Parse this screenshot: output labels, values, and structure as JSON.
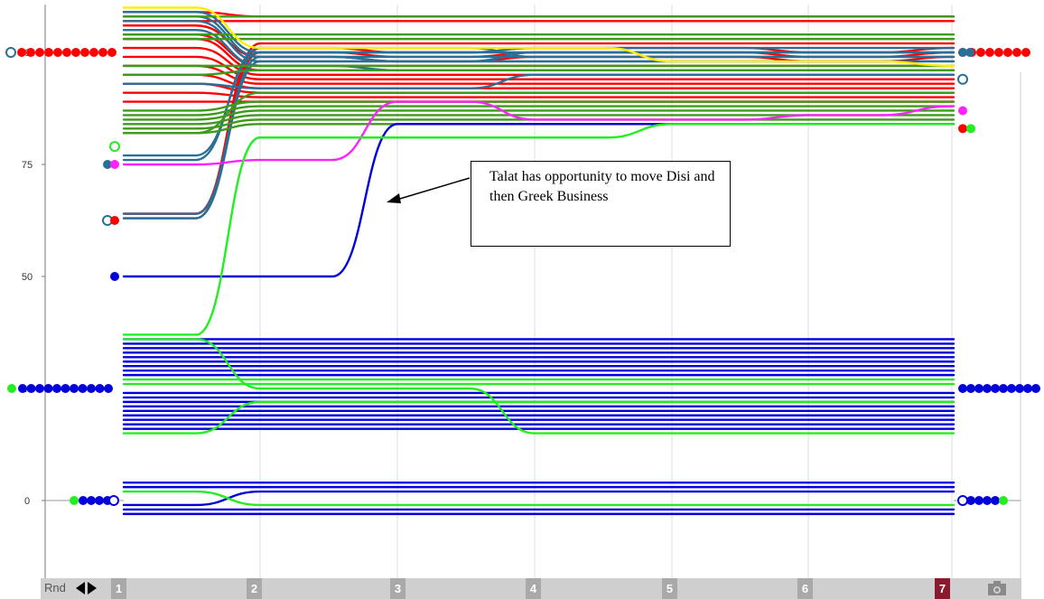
{
  "chart_data": {
    "type": "line",
    "title": "",
    "xlabel": "",
    "ylabel": "",
    "ylim": [
      -10,
      110
    ],
    "x_rounds": [
      "1",
      "2",
      "3",
      "4",
      "5",
      "6",
      "7"
    ],
    "y_ticks": [
      "0",
      "25",
      "50",
      "75",
      "100"
    ],
    "series_colors": {
      "red": "#ff0000",
      "teal": "#2a6f97",
      "olive": "#3d9a1a",
      "yellow": "#ffee00",
      "magenta": "#ff22ff",
      "blue": "#0000dd",
      "green": "#22ee22"
    },
    "groups": [
      {
        "color": "red",
        "values": [
          [
            64,
            102,
            102,
            102,
            102,
            102,
            102
          ],
          [
            63,
            101,
            100,
            101,
            101,
            100,
            101
          ],
          [
            64,
            100,
            99,
            100,
            100,
            99,
            100
          ],
          [
            106,
            99,
            98,
            99,
            99,
            98,
            99
          ],
          [
            104,
            97,
            97,
            97,
            97,
            97,
            97
          ],
          [
            103,
            96,
            96,
            96,
            96,
            96,
            96
          ],
          [
            101,
            95,
            95,
            95,
            95,
            95,
            95
          ],
          [
            99,
            94,
            94,
            94,
            94,
            94,
            94
          ],
          [
            97,
            93,
            93,
            93,
            93,
            93,
            93
          ],
          [
            95,
            92,
            92,
            92,
            92,
            92,
            92
          ],
          [
            93,
            91,
            91,
            91,
            91,
            91,
            91
          ],
          [
            91,
            90,
            90,
            90,
            90,
            90,
            90
          ],
          [
            89,
            89,
            89,
            89,
            89,
            89,
            89
          ],
          [
            109,
            108,
            108,
            108,
            108,
            108,
            108
          ],
          [
            107,
            107,
            107,
            107,
            107,
            107,
            107
          ]
        ]
      },
      {
        "color": "teal",
        "values": [
          [
            109,
            100,
            100,
            100,
            100,
            100,
            100
          ],
          [
            108,
            99,
            99,
            99,
            99,
            99,
            99
          ],
          [
            107,
            98,
            98,
            98,
            98,
            98,
            98
          ],
          [
            105,
            97,
            96,
            96,
            96,
            96,
            96
          ],
          [
            93,
            92,
            92,
            95,
            95,
            95,
            95
          ],
          [
            77,
            100,
            100,
            101,
            101,
            101,
            101
          ],
          [
            76,
            101,
            101,
            99,
            99,
            99,
            99
          ],
          [
            64,
            99,
            98,
            98,
            98,
            98,
            98
          ],
          [
            63,
            98,
            98,
            100,
            100,
            100,
            100
          ]
        ]
      },
      {
        "color": "olive",
        "values": [
          [
            87,
            89,
            89,
            89,
            89,
            89,
            89
          ],
          [
            86,
            88,
            88,
            88,
            88,
            88,
            88
          ],
          [
            85,
            87,
            87,
            87,
            87,
            87,
            87
          ],
          [
            84,
            86,
            86,
            86,
            86,
            86,
            86
          ],
          [
            83,
            85,
            85,
            85,
            85,
            85,
            85
          ],
          [
            82,
            84,
            84,
            84,
            84,
            84,
            84
          ],
          [
            82,
            91,
            91,
            91,
            91,
            91,
            91
          ],
          [
            95,
            96,
            96,
            96,
            96,
            96,
            96
          ],
          [
            97,
            97,
            97,
            97,
            97,
            97,
            97
          ],
          [
            104,
            104,
            104,
            104,
            104,
            104,
            104
          ],
          [
            108,
            108,
            108,
            108,
            108,
            108,
            108
          ],
          [
            103,
            103,
            103,
            103,
            103,
            103,
            103
          ]
        ]
      },
      {
        "color": "yellow",
        "values": [
          [
            110,
            101,
            101,
            101,
            98,
            98,
            97
          ]
        ]
      },
      {
        "color": "magenta",
        "values": [
          [
            75,
            76,
            89,
            85,
            85,
            86,
            88
          ]
        ]
      },
      {
        "color": "blue",
        "values": [
          [
            50,
            50,
            84,
            84,
            84,
            84,
            84
          ],
          [
            36,
            36,
            36,
            36,
            36,
            36,
            36
          ],
          [
            35,
            35,
            35,
            35,
            35,
            35,
            35
          ],
          [
            34,
            34,
            34,
            34,
            34,
            34,
            34
          ],
          [
            33,
            33,
            33,
            33,
            33,
            33,
            33
          ],
          [
            32,
            32,
            32,
            32,
            32,
            32,
            32
          ],
          [
            31,
            31,
            31,
            31,
            31,
            31,
            31
          ],
          [
            30,
            30,
            30,
            30,
            30,
            30,
            30
          ],
          [
            29,
            29,
            29,
            29,
            29,
            29,
            29
          ],
          [
            28,
            28,
            28,
            28,
            28,
            28,
            28
          ],
          [
            24,
            24,
            24,
            24,
            24,
            24,
            24
          ],
          [
            23,
            23,
            23,
            23,
            23,
            23,
            23
          ],
          [
            22,
            22,
            22,
            22,
            22,
            22,
            22
          ],
          [
            21,
            21,
            21,
            21,
            21,
            21,
            21
          ],
          [
            20,
            20,
            20,
            20,
            20,
            20,
            20
          ],
          [
            19,
            19,
            19,
            19,
            19,
            19,
            19
          ],
          [
            18,
            18,
            18,
            18,
            18,
            18,
            18
          ],
          [
            17,
            17,
            17,
            17,
            17,
            17,
            17
          ],
          [
            16,
            16,
            16,
            16,
            16,
            16,
            16
          ],
          [
            4,
            4,
            4,
            4,
            4,
            4,
            4
          ],
          [
            3,
            3,
            3,
            3,
            3,
            3,
            3
          ],
          [
            -1,
            2,
            2,
            2,
            2,
            2,
            2
          ],
          [
            -2,
            -2,
            -2,
            -2,
            -2,
            -2,
            -2
          ],
          [
            -3,
            -3,
            -3,
            -3,
            -3,
            -3,
            -3
          ]
        ]
      },
      {
        "color": "green",
        "values": [
          [
            37,
            81,
            81,
            81,
            84,
            84,
            84
          ],
          [
            36,
            25,
            25,
            15,
            15,
            15,
            15
          ],
          [
            15,
            22,
            22,
            22,
            22,
            22,
            22
          ],
          [
            27,
            27,
            27,
            27,
            27,
            27,
            27
          ],
          [
            26,
            26,
            26,
            26,
            26,
            26,
            26
          ],
          [
            2,
            -1,
            -1,
            -1,
            -1,
            -1,
            -1
          ]
        ]
      }
    ],
    "annotation": "Talat has opportunity to move  Disi and then Greek Business"
  },
  "footer": {
    "rnd_label": "Rnd",
    "rounds": [
      "1",
      "2",
      "3",
      "4",
      "5",
      "6",
      "7"
    ],
    "active_round": "7",
    "active_color": "#8b1a2e"
  },
  "icons": [
    "left-arrow-icon",
    "right-arrow-icon",
    "camera-icon"
  ]
}
